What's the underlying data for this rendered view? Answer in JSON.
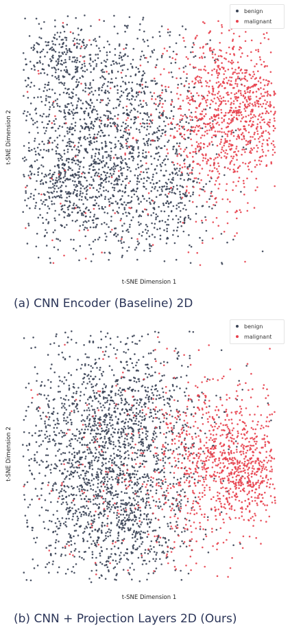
{
  "colors": {
    "benign": "#3b4456",
    "malignant": "#e8414e"
  },
  "chart_data": [
    {
      "type": "scatter",
      "title": "",
      "xlabel": "t-SNE Dimension 1",
      "ylabel": "t-SNE Dimension 2",
      "caption": "(a) CNN Encoder (Baseline) 2D",
      "xlim": [
        -60,
        60
      ],
      "ylim": [
        -60,
        60
      ],
      "grid": false,
      "axes_visible": false,
      "legend_position": "top-right",
      "series": [
        {
          "name": "benign",
          "color": "#3b4456",
          "n_points": 2400,
          "regions": [
            {
              "cx": -22,
              "cy": 0,
              "sx": 25,
              "sy": 29,
              "weight": 0.8
            },
            {
              "cx": -42,
              "cy": 40,
              "sx": 9,
              "sy": 7,
              "weight": 0.06
            },
            {
              "cx": -38,
              "cy": -22,
              "sx": 9,
              "sy": 9,
              "weight": 0.06
            },
            {
              "cx": 6,
              "cy": -28,
              "sx": 14,
              "sy": 12,
              "weight": 0.08
            }
          ]
        },
        {
          "name": "malignant",
          "color": "#e8414e",
          "n_points": 1200,
          "regions": [
            {
              "cx": 33,
              "cy": 12,
              "sx": 13,
              "sy": 20,
              "weight": 0.65
            },
            {
              "cx": 50,
              "cy": 14,
              "sx": 8,
              "sy": 13,
              "weight": 0.22
            },
            {
              "cx": -10,
              "cy": 0,
              "sx": 28,
              "sy": 32,
              "weight": 0.13
            }
          ]
        }
      ]
    },
    {
      "type": "scatter",
      "title": "",
      "xlabel": "t-SNE Dimension 1",
      "ylabel": "t-SNE Dimension 2",
      "caption": "(b) CNN + Projection Layers 2D (Ours)",
      "xlim": [
        -60,
        60
      ],
      "ylim": [
        -60,
        60
      ],
      "grid": false,
      "axes_visible": false,
      "legend_position": "top-right",
      "series": [
        {
          "name": "benign",
          "color": "#3b4456",
          "n_points": 2400,
          "regions": [
            {
              "cx": -20,
              "cy": 0,
              "sx": 23,
              "sy": 31,
              "weight": 0.85
            },
            {
              "cx": -10,
              "cy": -32,
              "sx": 13,
              "sy": 12,
              "weight": 0.1
            },
            {
              "cx": -8,
              "cy": 22,
              "sx": 9,
              "sy": 9,
              "weight": 0.05
            }
          ]
        },
        {
          "name": "malignant",
          "color": "#e8414e",
          "n_points": 1200,
          "regions": [
            {
              "cx": 28,
              "cy": -2,
              "sx": 14,
              "sy": 19,
              "weight": 0.55
            },
            {
              "cx": 47,
              "cy": -6,
              "sx": 7,
              "sy": 12,
              "weight": 0.3
            },
            {
              "cx": -12,
              "cy": 0,
              "sx": 26,
              "sy": 30,
              "weight": 0.15
            }
          ]
        }
      ]
    }
  ]
}
